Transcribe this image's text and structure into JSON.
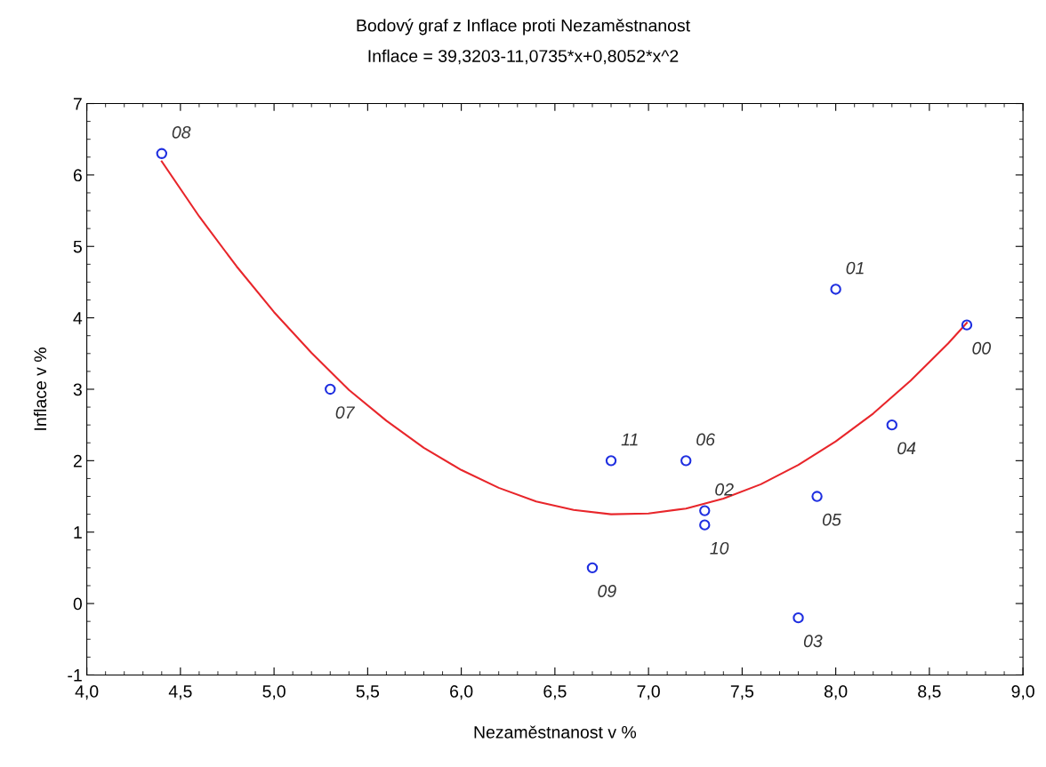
{
  "chart_data": {
    "type": "scatter",
    "title": "Bodový graf z Inflace proti Nezaměstnanost",
    "subtitle": "Inflace = 39,3203-11,0735*x+0,8052*x^2",
    "xlabel": "Nezaměstnanost v %",
    "ylabel": "Inflace v %",
    "x": [
      8.7,
      8.0,
      7.3,
      7.8,
      8.3,
      7.9,
      7.2,
      5.3,
      4.4,
      6.7,
      7.3,
      6.8
    ],
    "series": [
      {
        "color": "#1f2fe0",
        "marker": "circle",
        "values": [
          3.9,
          4.4,
          1.3,
          -0.2,
          2.5,
          1.5,
          2.0,
          3.0,
          6.3,
          0.5,
          1.1,
          2.0
        ]
      },
      {
        "type": "line",
        "color": "#e8262b",
        "marker": "none",
        "line_style": "solid",
        "x": [
          4.4,
          4.6,
          4.8,
          5.0,
          5.2,
          5.4,
          5.6,
          5.8,
          6.0,
          6.2,
          6.4,
          6.6,
          6.8,
          7.0,
          7.2,
          7.4,
          7.6,
          7.8,
          8.0,
          8.2,
          8.4,
          8.6,
          8.7
        ],
        "values": [
          6.19,
          5.42,
          4.72,
          4.08,
          3.51,
          2.99,
          2.56,
          2.18,
          1.87,
          1.62,
          1.43,
          1.31,
          1.25,
          1.26,
          1.33,
          1.47,
          1.67,
          1.94,
          2.27,
          2.66,
          3.12,
          3.64,
          3.93
        ]
      }
    ],
    "annotations": [
      {
        "text": "00",
        "x": 8.7,
        "y": 3.9
      },
      {
        "text": "01",
        "x": 8.0,
        "y": 4.4
      },
      {
        "text": "02",
        "x": 7.3,
        "y": 1.3
      },
      {
        "text": "03",
        "x": 7.8,
        "y": -0.2
      },
      {
        "text": "04",
        "x": 8.3,
        "y": 2.5
      },
      {
        "text": "05",
        "x": 7.9,
        "y": 1.5
      },
      {
        "text": "06",
        "x": 7.2,
        "y": 2.0
      },
      {
        "text": "07",
        "x": 5.3,
        "y": 3.0
      },
      {
        "text": "08",
        "x": 4.4,
        "y": 6.3
      },
      {
        "text": "09",
        "x": 6.7,
        "y": 0.5
      },
      {
        "text": "10",
        "x": 7.3,
        "y": 1.1
      },
      {
        "text": "11",
        "x": 6.8,
        "y": 2.0
      }
    ],
    "xlim": [
      4.0,
      9.0
    ],
    "xticks": [
      {
        "value": 4.0,
        "label": "4,0"
      },
      {
        "value": 4.5,
        "label": "4,5"
      },
      {
        "value": 5.0,
        "label": "5,0"
      },
      {
        "value": 5.5,
        "label": "5,5"
      },
      {
        "value": 6.0,
        "label": "6,0"
      },
      {
        "value": 6.5,
        "label": "6,5"
      },
      {
        "value": 7.0,
        "label": "7,0"
      },
      {
        "value": 7.5,
        "label": "7,5"
      },
      {
        "value": 8.0,
        "label": "8,0"
      },
      {
        "value": 8.5,
        "label": "8,5"
      },
      {
        "value": 9.0,
        "label": "9,0"
      }
    ],
    "ylim": [
      -1,
      7
    ],
    "yticks": [
      -1,
      0,
      1,
      2,
      3,
      4,
      5,
      6,
      7
    ],
    "grid": false,
    "legend": false
  }
}
